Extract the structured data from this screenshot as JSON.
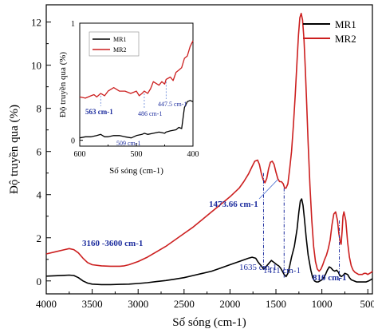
{
  "chart_data": [
    {
      "type": "line",
      "xlabel": "Số sóng (cm-1)",
      "ylabel": "Độ truyền qua (%)",
      "xlim": [
        4000,
        450
      ],
      "ylim": [
        -0.6,
        12.8
      ],
      "x_reversed": true,
      "x_ticks": [
        4000,
        3500,
        3000,
        2500,
        2000,
        1500,
        1000,
        500
      ],
      "y_ticks": [
        0,
        2,
        4,
        6,
        8,
        10,
        12
      ],
      "legend_position": "top-right",
      "series": [
        {
          "name": "MR1",
          "color": "#000000",
          "x": [
            4000,
            3900,
            3800,
            3750,
            3700,
            3650,
            3600,
            3550,
            3500,
            3400,
            3300,
            3200,
            3100,
            3000,
            2900,
            2800,
            2700,
            2600,
            2500,
            2400,
            2300,
            2200,
            2100,
            2000,
            1900,
            1800,
            1760,
            1720,
            1690,
            1660,
            1635,
            1610,
            1580,
            1550,
            1520,
            1490,
            1470,
            1450,
            1430,
            1411,
            1390,
            1370,
            1350,
            1330,
            1300,
            1270,
            1250,
            1235,
            1220,
            1205,
            1190,
            1170,
            1150,
            1120,
            1100,
            1080,
            1060,
            1040,
            1020,
            1000,
            980,
            960,
            940,
            920,
            900,
            880,
            860,
            840,
            820,
            810,
            790,
            770,
            750,
            720,
            700,
            680,
            650,
            620,
            600,
            560,
            520,
            490,
            470,
            450
          ],
          "y": [
            0.22,
            0.24,
            0.26,
            0.27,
            0.25,
            0.15,
            0.0,
            -0.1,
            -0.15,
            -0.17,
            -0.17,
            -0.16,
            -0.15,
            -0.12,
            -0.08,
            -0.03,
            0.02,
            0.08,
            0.15,
            0.25,
            0.35,
            0.45,
            0.6,
            0.75,
            0.9,
            1.05,
            1.1,
            1.05,
            0.85,
            0.7,
            0.55,
            0.65,
            0.8,
            0.95,
            0.85,
            0.75,
            0.7,
            0.6,
            0.45,
            0.3,
            0.2,
            0.35,
            0.7,
            1.1,
            1.6,
            2.4,
            3.2,
            3.7,
            3.8,
            3.5,
            2.9,
            2.0,
            1.2,
            0.5,
            0.15,
            0.0,
            -0.05,
            -0.05,
            0.0,
            0.05,
            0.15,
            0.3,
            0.5,
            0.65,
            0.6,
            0.5,
            0.45,
            0.5,
            0.4,
            0.3,
            0.2,
            0.25,
            0.35,
            0.3,
            0.15,
            0.05,
            0.0,
            -0.05,
            -0.05,
            -0.05,
            -0.05,
            0.0,
            0.05,
            0.1
          ]
        },
        {
          "name": "MR2",
          "color": "#cc1f1f",
          "x": [
            4000,
            3900,
            3800,
            3750,
            3700,
            3650,
            3600,
            3550,
            3500,
            3400,
            3300,
            3200,
            3150,
            3100,
            3000,
            2900,
            2800,
            2700,
            2600,
            2500,
            2400,
            2300,
            2200,
            2100,
            2000,
            1900,
            1850,
            1800,
            1760,
            1730,
            1700,
            1680,
            1660,
            1640,
            1620,
            1600,
            1580,
            1560,
            1540,
            1520,
            1500,
            1480,
            1460,
            1440,
            1420,
            1405,
            1390,
            1370,
            1350,
            1330,
            1310,
            1290,
            1270,
            1255,
            1240,
            1225,
            1210,
            1195,
            1180,
            1165,
            1150,
            1130,
            1110,
            1090,
            1070,
            1050,
            1030,
            1010,
            990,
            970,
            950,
            930,
            910,
            890,
            870,
            850,
            830,
            815,
            800,
            790,
            780,
            770,
            760,
            740,
            720,
            700,
            680,
            660,
            640,
            620,
            600,
            580,
            560,
            540,
            520,
            500,
            480,
            460,
            450
          ],
          "y": [
            1.25,
            1.35,
            1.45,
            1.5,
            1.45,
            1.3,
            1.05,
            0.85,
            0.75,
            0.7,
            0.68,
            0.68,
            0.7,
            0.75,
            0.9,
            1.1,
            1.35,
            1.6,
            1.9,
            2.2,
            2.5,
            2.85,
            3.2,
            3.55,
            3.9,
            4.3,
            4.6,
            4.95,
            5.3,
            5.55,
            5.6,
            5.4,
            5.0,
            4.7,
            4.55,
            4.75,
            5.2,
            5.5,
            5.55,
            5.4,
            5.05,
            4.75,
            4.6,
            4.6,
            4.5,
            4.3,
            4.3,
            4.5,
            5.2,
            6.0,
            7.2,
            8.6,
            10.2,
            11.4,
            12.2,
            12.4,
            12.1,
            11.2,
            9.8,
            8.2,
            6.4,
            4.4,
            2.8,
            1.6,
            0.9,
            0.55,
            0.45,
            0.55,
            0.75,
            1.0,
            1.2,
            1.5,
            1.9,
            2.6,
            3.1,
            3.2,
            2.8,
            2.2,
            1.8,
            1.7,
            2.3,
            3.0,
            3.2,
            2.8,
            1.8,
            1.1,
            0.7,
            0.5,
            0.4,
            0.35,
            0.3,
            0.3,
            0.3,
            0.35,
            0.35,
            0.3,
            0.35,
            0.4,
            0.45
          ]
        }
      ],
      "annotations": [
        {
          "text": "3160 -3600 cm-1",
          "x": 3380,
          "y": 1.2
        },
        {
          "text": "1473.66 cm-1",
          "x": 1473.66,
          "y": 4.6
        },
        {
          "text": "1635 cm-1",
          "x": 1635,
          "y": 0.55
        },
        {
          "text": "1411 cm-1",
          "x": 1411,
          "y": 0.3
        },
        {
          "text": "810 cm-1",
          "x": 810,
          "y": 0.3
        }
      ]
    },
    {
      "type": "line",
      "xlabel": "Số sóng (cm-1)",
      "ylabel": "Độ truyền qua (%)",
      "xlim": [
        600,
        400
      ],
      "ylim": [
        -0.05,
        1.0
      ],
      "x_reversed": true,
      "x_ticks": [
        600,
        500,
        400
      ],
      "y_ticks": [
        0,
        1
      ],
      "legend_position": "top-left",
      "series": [
        {
          "name": "MR1",
          "color": "#000000",
          "x": [
            600,
            590,
            580,
            570,
            563,
            556,
            550,
            540,
            530,
            520,
            509,
            500,
            490,
            486,
            480,
            470,
            460,
            450,
            447.5,
            440,
            430,
            425,
            420,
            415,
            410,
            405,
            400
          ],
          "y": [
            0.02,
            0.03,
            0.03,
            0.04,
            0.05,
            0.03,
            0.03,
            0.04,
            0.04,
            0.03,
            0.02,
            0.04,
            0.05,
            0.06,
            0.05,
            0.06,
            0.07,
            0.06,
            0.07,
            0.08,
            0.09,
            0.11,
            0.1,
            0.28,
            0.33,
            0.34,
            0.33
          ]
        },
        {
          "name": "MR2",
          "color": "#cc1f1f",
          "x": [
            600,
            590,
            580,
            575,
            570,
            563,
            556,
            550,
            540,
            530,
            520,
            510,
            500,
            495,
            490,
            486,
            480,
            475,
            470,
            460,
            455,
            450,
            447.5,
            440,
            435,
            430,
            425,
            420,
            415,
            410,
            405,
            400
          ],
          "y": [
            0.37,
            0.36,
            0.38,
            0.39,
            0.37,
            0.4,
            0.38,
            0.42,
            0.45,
            0.42,
            0.42,
            0.4,
            0.42,
            0.38,
            0.4,
            0.42,
            0.4,
            0.44,
            0.5,
            0.47,
            0.5,
            0.48,
            0.52,
            0.54,
            0.51,
            0.58,
            0.6,
            0.62,
            0.7,
            0.72,
            0.8,
            0.85
          ]
        }
      ],
      "annotations": [
        {
          "text": "563 cm-1",
          "x": 563,
          "y": 0.4
        },
        {
          "text": "509 cm-1",
          "x": 509,
          "y": 0.02
        },
        {
          "text": "486 cm-1",
          "x": 486,
          "y": 0.42
        },
        {
          "text": "447.5 cm-1",
          "x": 447.5,
          "y": 0.52
        }
      ]
    }
  ]
}
